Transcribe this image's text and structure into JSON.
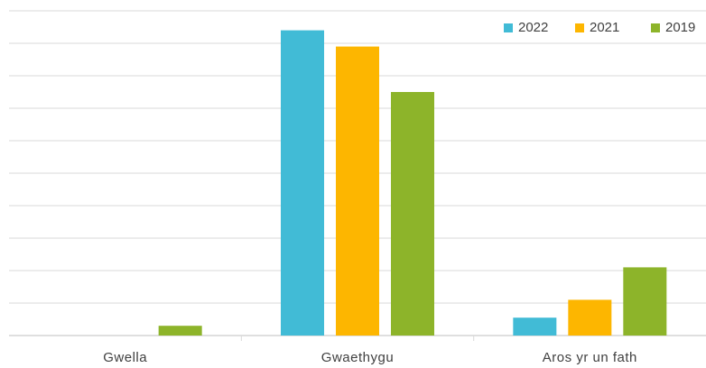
{
  "chart_data": {
    "type": "bar",
    "categories": [
      "Gwella",
      "Gwaethygu",
      "Aros yr un fath"
    ],
    "series": [
      {
        "name": "2022",
        "color": "#41BBD6",
        "values": [
          0,
          94,
          5.5
        ]
      },
      {
        "name": "2021",
        "color": "#FDB600",
        "values": [
          0,
          89,
          11
        ]
      },
      {
        "name": "2019",
        "color": "#8DB42A",
        "values": [
          3,
          75,
          21
        ]
      }
    ],
    "ylim": [
      0,
      100
    ],
    "grid": true,
    "legend_position": "top-right"
  }
}
